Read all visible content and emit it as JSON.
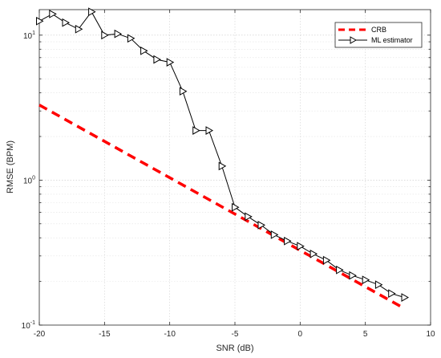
{
  "chart_data": {
    "type": "line",
    "xlabel": "SNR (dB)",
    "ylabel": "RMSE (BPM)",
    "xlim": [
      -20,
      10
    ],
    "ylim": [
      0.1,
      15
    ],
    "yscale": "log",
    "grid": true,
    "legend_position": "top-right",
    "x_ticks": [
      -20,
      -15,
      -10,
      -5,
      0,
      5,
      10
    ],
    "x_tick_labels": [
      "-20",
      "-15",
      "-10",
      "-5",
      "0",
      "5",
      "10"
    ],
    "y_ticks": [
      0.1,
      1,
      10
    ],
    "y_tick_labels": [
      {
        "base": "10",
        "exp": "-1"
      },
      {
        "base": "10",
        "exp": "0"
      },
      {
        "base": "10",
        "exp": "1"
      }
    ],
    "series": [
      {
        "name": "CRB",
        "color": "#ff0000",
        "style": "dashed",
        "marker": "none",
        "x": [
          -20,
          8
        ],
        "y": [
          3.3,
          0.13
        ]
      },
      {
        "name": "ML estimator",
        "color": "#000000",
        "style": "solid",
        "marker": "triangle-right",
        "x": [
          -20,
          -19,
          -18,
          -17,
          -16,
          -15,
          -14,
          -13,
          -12,
          -11,
          -10,
          -9,
          -8,
          -7,
          -6,
          -5,
          -4,
          -3,
          -2,
          -1,
          0,
          1,
          2,
          3,
          4,
          5,
          6,
          7,
          8
        ],
        "y": [
          12.5,
          14,
          12.2,
          11,
          14.5,
          10,
          10.2,
          9.5,
          7.8,
          6.8,
          6.5,
          4.1,
          2.2,
          2.2,
          1.25,
          0.65,
          0.56,
          0.49,
          0.42,
          0.38,
          0.35,
          0.31,
          0.28,
          0.24,
          0.22,
          0.205,
          0.19,
          0.165,
          0.155
        ]
      }
    ]
  }
}
